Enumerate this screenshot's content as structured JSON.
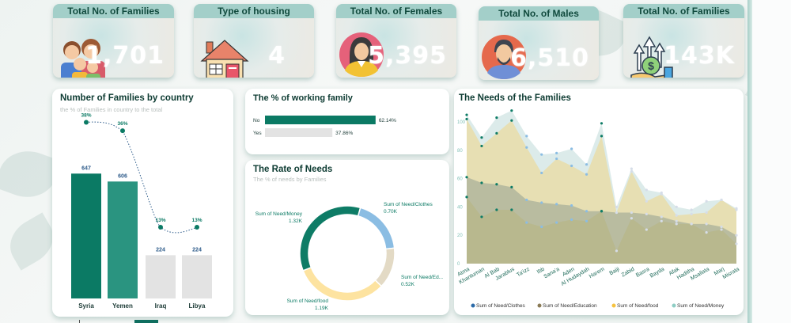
{
  "kpis": [
    {
      "title": "Total No. of Families",
      "value": "1,701",
      "icon": "family-icon"
    },
    {
      "title": "Type of housing",
      "value": "4",
      "icon": "house-icon"
    },
    {
      "title": "Total No. of Females",
      "value": "5,395",
      "icon": "female-avatar-icon"
    },
    {
      "title": "Total No. of Males",
      "value": "6,510",
      "icon": "male-avatar-icon"
    },
    {
      "title": "Total No. of Families",
      "value": "143K",
      "icon": "money-growth-icon"
    }
  ],
  "colors": {
    "teal_dark": "#0b7a64",
    "teal_mid": "#2a9480",
    "grey_bar": "#e3e3e3",
    "clothes": "#8bbde3",
    "education": "#e3dac5",
    "food": "#fde3a0",
    "money": "#0e7c66",
    "kpi_header": "#a3cfc9",
    "title_text": "#0d3b32"
  },
  "families_by_country": {
    "title": "Number of Families by country",
    "subtitle": "the % of Families in country to the total",
    "chart_data": {
      "type": "bar",
      "categories": [
        "Syria",
        "Yemen",
        "Iraq",
        "Libya"
      ],
      "values": [
        647,
        606,
        224,
        224
      ],
      "value_labels": [
        "647",
        "606",
        "224",
        "224"
      ],
      "line_series": {
        "name": "% of Families",
        "values": [
          38,
          36,
          13,
          13
        ],
        "labels": [
          "38%",
          "36%",
          "13%",
          "13%"
        ]
      },
      "ylim": [
        0,
        800
      ]
    }
  },
  "working_family": {
    "title": "The % of working family",
    "chart_data": {
      "type": "bar",
      "orientation": "horizontal",
      "categories": [
        "No",
        "Yes"
      ],
      "values": [
        62.14,
        37.86
      ],
      "value_labels": [
        "62.14%",
        "37.86%"
      ],
      "xlim": [
        0,
        100
      ]
    }
  },
  "rate_of_needs": {
    "title": "The Rate of Needs",
    "subtitle": "The % of needs by Families",
    "chart_data": {
      "type": "pie",
      "donut": true,
      "slices": [
        {
          "label": "Sum of Need/Clothes",
          "value": 0.7,
          "display": "0.70K"
        },
        {
          "label": "Sum of Need/Ed...",
          "value": 0.52,
          "display": "0.52K"
        },
        {
          "label": "Sum of Need/food",
          "value": 1.19,
          "display": "1.19K"
        },
        {
          "label": "Sum of Need/Money",
          "value": 1.32,
          "display": "1.32K"
        }
      ]
    }
  },
  "needs_of_families": {
    "title": "The Needs of the Families",
    "chart_data": {
      "type": "area",
      "stacked": true,
      "categories": [
        "Atma",
        "Khantuman",
        "Al Bab",
        "Jarablus",
        "Ta'izz",
        "Ibb",
        "Sana'a",
        "Aden",
        "Al Hudaydah",
        "Harem",
        "Baiji",
        "Zabid",
        "Basra",
        "Bayda",
        "Afak",
        "Haditha",
        "Msallata",
        "Marj",
        "Misrata"
      ],
      "series": [
        {
          "name": "Sum of Need/Clothes",
          "values": [
            47,
            33,
            38,
            38,
            29,
            26,
            29,
            31,
            30,
            37,
            9,
            32,
            24,
            30,
            28,
            28,
            22,
            24,
            14
          ]
        },
        {
          "name": "Sum of Need/Education",
          "values": [
            14,
            24,
            18,
            16,
            16,
            17,
            13,
            10,
            7,
            0,
            27,
            4,
            11,
            3,
            2,
            0,
            6,
            2,
            6
          ]
        },
        {
          "name": "Sum of Need/food",
          "values": [
            41,
            26,
            36,
            47,
            37,
            21,
            32,
            28,
            26,
            53,
            0,
            29,
            9,
            16,
            4,
            7,
            8,
            19,
            18
          ]
        },
        {
          "name": "Sum of Need/Money",
          "values": [
            3,
            6,
            11,
            7,
            8,
            13,
            4,
            12,
            7,
            9,
            4,
            2,
            8,
            1,
            6,
            3,
            8,
            0,
            1
          ]
        }
      ],
      "yticks": [
        "0",
        "20",
        "40",
        "60",
        "80",
        "100"
      ],
      "ylim": [
        0,
        110
      ],
      "legend": [
        "Sum of Need/Clothes",
        "Sum of Need/Education",
        "Sum of Need/food",
        "Sum of Need/Money"
      ],
      "legend_colors": [
        "#2b6aa8",
        "#8a7a55",
        "#f6c23e",
        "#8ecdc4"
      ],
      "legend_position": "bottom"
    }
  }
}
